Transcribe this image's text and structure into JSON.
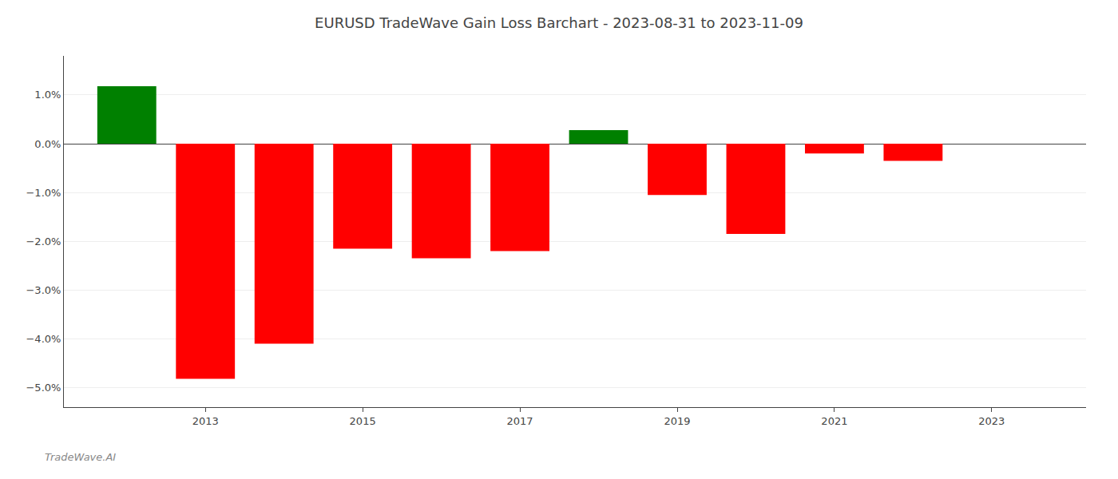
{
  "chart_data": {
    "type": "bar",
    "title": "EURUSD TradeWave Gain Loss Barchart - 2023-08-31 to 2023-11-09",
    "annotations": [
      "TradeWave.AI"
    ],
    "x": [
      2012,
      2013,
      2014,
      2015,
      2016,
      2017,
      2018,
      2019,
      2020,
      2021,
      2022
    ],
    "values": [
      1.18,
      -4.82,
      -4.1,
      -2.15,
      -2.35,
      -2.2,
      0.28,
      -1.05,
      -1.85,
      -0.2,
      -0.35
    ],
    "colors": [
      "#008000",
      "#ff0000",
      "#ff0000",
      "#ff0000",
      "#ff0000",
      "#ff0000",
      "#008000",
      "#ff0000",
      "#ff0000",
      "#ff0000",
      "#ff0000"
    ],
    "xlim": [
      2011.2,
      2024.2
    ],
    "xticks": [
      2013,
      2015,
      2017,
      2019,
      2021,
      2023
    ],
    "ylim": [
      -5.4,
      1.8
    ],
    "yticks": [
      {
        "value": -5.0,
        "label": "−5.0%"
      },
      {
        "value": -4.0,
        "label": "−4.0%"
      },
      {
        "value": -3.0,
        "label": "−3.0%"
      },
      {
        "value": -2.0,
        "label": "−2.0%"
      },
      {
        "value": -1.0,
        "label": "−1.0%"
      },
      {
        "value": 0.0,
        "label": "0.0%"
      },
      {
        "value": 1.0,
        "label": "1.0%"
      }
    ],
    "grid": true
  }
}
